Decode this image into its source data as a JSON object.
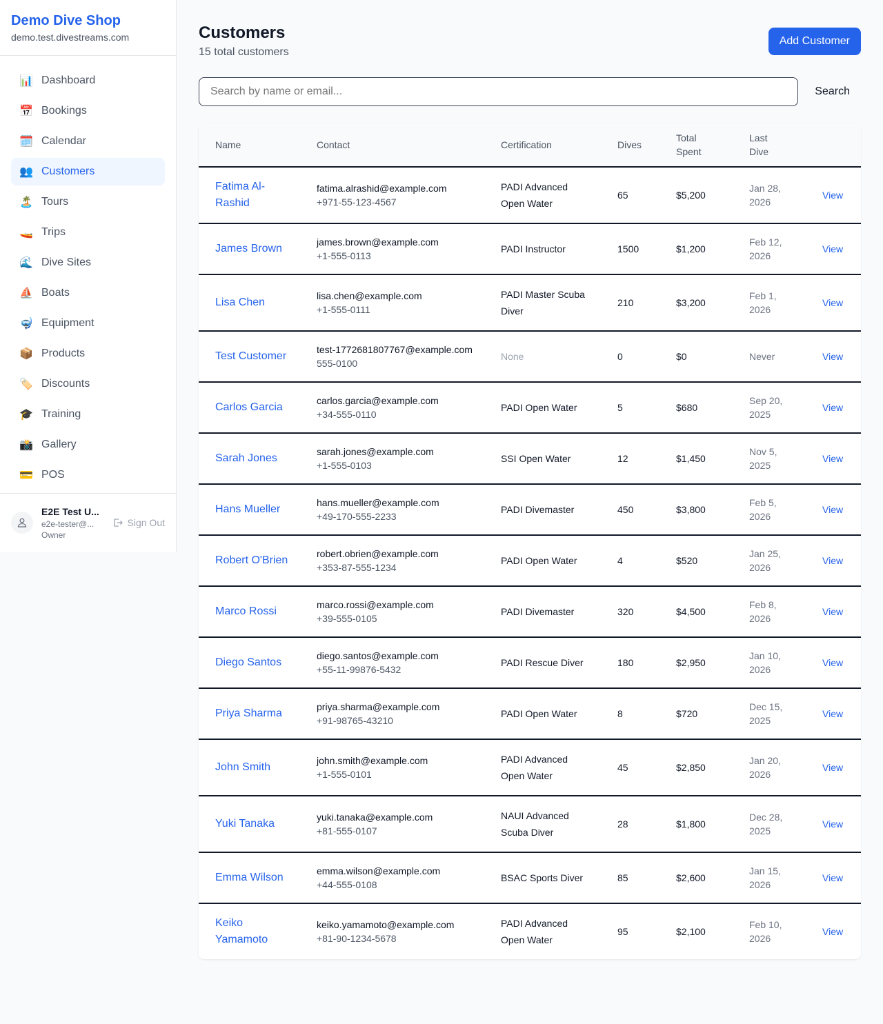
{
  "sidebar": {
    "title": "Demo Dive Shop",
    "subtitle": "demo.test.divestreams.com",
    "items": [
      {
        "label": "Dashboard",
        "icon": "📊",
        "name": "bar-chart-icon"
      },
      {
        "label": "Bookings",
        "icon": "📅",
        "name": "calendar-date-icon"
      },
      {
        "label": "Calendar",
        "icon": "🗓️",
        "name": "spiral-calendar-icon"
      },
      {
        "label": "Customers",
        "icon": "👥",
        "name": "users-icon",
        "active": true
      },
      {
        "label": "Tours",
        "icon": "🏝️",
        "name": "island-icon"
      },
      {
        "label": "Trips",
        "icon": "🚤",
        "name": "speedboat-icon"
      },
      {
        "label": "Dive Sites",
        "icon": "🌊",
        "name": "wave-icon"
      },
      {
        "label": "Boats",
        "icon": "⛵",
        "name": "sailboat-icon"
      },
      {
        "label": "Equipment",
        "icon": "🤿",
        "name": "diving-mask-icon"
      },
      {
        "label": "Products",
        "icon": "📦",
        "name": "package-icon"
      },
      {
        "label": "Discounts",
        "icon": "🏷️",
        "name": "tag-icon"
      },
      {
        "label": "Training",
        "icon": "🎓",
        "name": "graduation-cap-icon"
      },
      {
        "label": "Gallery",
        "icon": "📸",
        "name": "camera-icon"
      },
      {
        "label": "POS",
        "icon": "💳",
        "name": "credit-card-icon"
      }
    ],
    "user": {
      "name": "E2E Test U...",
      "email": "e2e-tester@...",
      "role": "Owner",
      "sign_out": "Sign Out"
    }
  },
  "header": {
    "title": "Customers",
    "count": "15 total customers",
    "add_label": "Add Customer"
  },
  "search": {
    "placeholder": "Search by name or email...",
    "button": "Search"
  },
  "table": {
    "columns": [
      "Name",
      "Contact",
      "Certification",
      "Dives",
      "Total Spent",
      "Last Dive",
      ""
    ],
    "view_label": "View",
    "rows": [
      {
        "name": "Fatima Al-Rashid",
        "email": "fatima.alrashid@example.com",
        "phone": "+971-55-123-4567",
        "cert": "PADI Advanced Open Water",
        "dives": "65",
        "spent": "$5,200",
        "last": "Jan 28, 2026"
      },
      {
        "name": "James Brown",
        "email": "james.brown@example.com",
        "phone": "+1-555-0113",
        "cert": "PADI Instructor",
        "dives": "1500",
        "spent": "$1,200",
        "last": "Feb 12, 2026"
      },
      {
        "name": "Lisa Chen",
        "email": "lisa.chen@example.com",
        "phone": "+1-555-0111",
        "cert": "PADI Master Scuba Diver",
        "dives": "210",
        "spent": "$3,200",
        "last": "Feb 1, 2026"
      },
      {
        "name": "Test Customer",
        "email": "test-1772681807767@example.com",
        "phone": "555-0100",
        "cert": "None",
        "dives": "0",
        "spent": "$0",
        "last": "Never"
      },
      {
        "name": "Carlos Garcia",
        "email": "carlos.garcia@example.com",
        "phone": "+34-555-0110",
        "cert": "PADI Open Water",
        "dives": "5",
        "spent": "$680",
        "last": "Sep 20, 2025"
      },
      {
        "name": "Sarah Jones",
        "email": "sarah.jones@example.com",
        "phone": "+1-555-0103",
        "cert": "SSI Open Water",
        "dives": "12",
        "spent": "$1,450",
        "last": "Nov 5, 2025"
      },
      {
        "name": "Hans Mueller",
        "email": "hans.mueller@example.com",
        "phone": "+49-170-555-2233",
        "cert": "PADI Divemaster",
        "dives": "450",
        "spent": "$3,800",
        "last": "Feb 5, 2026"
      },
      {
        "name": "Robert O'Brien",
        "email": "robert.obrien@example.com",
        "phone": "+353-87-555-1234",
        "cert": "PADI Open Water",
        "dives": "4",
        "spent": "$520",
        "last": "Jan 25, 2026"
      },
      {
        "name": "Marco Rossi",
        "email": "marco.rossi@example.com",
        "phone": "+39-555-0105",
        "cert": "PADI Divemaster",
        "dives": "320",
        "spent": "$4,500",
        "last": "Feb 8, 2026"
      },
      {
        "name": "Diego Santos",
        "email": "diego.santos@example.com",
        "phone": "+55-11-99876-5432",
        "cert": "PADI Rescue Diver",
        "dives": "180",
        "spent": "$2,950",
        "last": "Jan 10, 2026"
      },
      {
        "name": "Priya Sharma",
        "email": "priya.sharma@example.com",
        "phone": "+91-98765-43210",
        "cert": "PADI Open Water",
        "dives": "8",
        "spent": "$720",
        "last": "Dec 15, 2025"
      },
      {
        "name": "John Smith",
        "email": "john.smith@example.com",
        "phone": "+1-555-0101",
        "cert": "PADI Advanced Open Water",
        "dives": "45",
        "spent": "$2,850",
        "last": "Jan 20, 2026"
      },
      {
        "name": "Yuki Tanaka",
        "email": "yuki.tanaka@example.com",
        "phone": "+81-555-0107",
        "cert": "NAUI Advanced Scuba Diver",
        "dives": "28",
        "spent": "$1,800",
        "last": "Dec 28, 2025"
      },
      {
        "name": "Emma Wilson",
        "email": "emma.wilson@example.com",
        "phone": "+44-555-0108",
        "cert": "BSAC Sports Diver",
        "dives": "85",
        "spent": "$2,600",
        "last": "Jan 15, 2026"
      },
      {
        "name": "Keiko Yamamoto",
        "email": "keiko.yamamoto@example.com",
        "phone": "+81-90-1234-5678",
        "cert": "PADI Advanced Open Water",
        "dives": "95",
        "spent": "$2,100",
        "last": "Feb 10, 2026"
      }
    ]
  }
}
